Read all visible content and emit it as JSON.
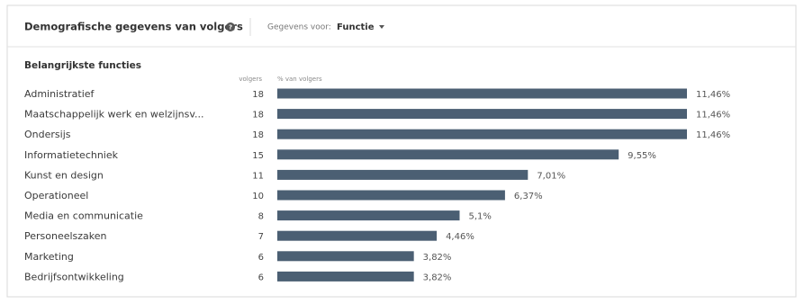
{
  "header": {
    "title": "Demografische gegevens van volgers",
    "filter_label": "Gegevens voor:",
    "filter_value": "Functie"
  },
  "chart_data": {
    "type": "bar",
    "title": "Belangrijkste functies",
    "categories": [
      "Administratief",
      "Maatschappelijk werk en welzijnsv...",
      "Ondersijs",
      "Informatietechniek",
      "Kunst en design",
      "Operationeel",
      "Media en communicatie",
      "Personeelszaken",
      "Marketing",
      "Bedrijfsontwikkeling"
    ],
    "series": [
      {
        "name": "volgers",
        "values": [
          18,
          18,
          18,
          15,
          11,
          10,
          8,
          7,
          6,
          6
        ]
      },
      {
        "name": "% van volgers",
        "color": "#4b5f73",
        "values": [
          11.46,
          11.46,
          11.46,
          9.55,
          7.01,
          6.37,
          5.1,
          4.46,
          3.82,
          3.82
        ],
        "value_labels": [
          "11,46%",
          "11,46%",
          "11,46%",
          "9,55%",
          "7,01%",
          "6,37%",
          "5,1%",
          "4,46%",
          "3,82%",
          "3,82%"
        ]
      }
    ]
  }
}
